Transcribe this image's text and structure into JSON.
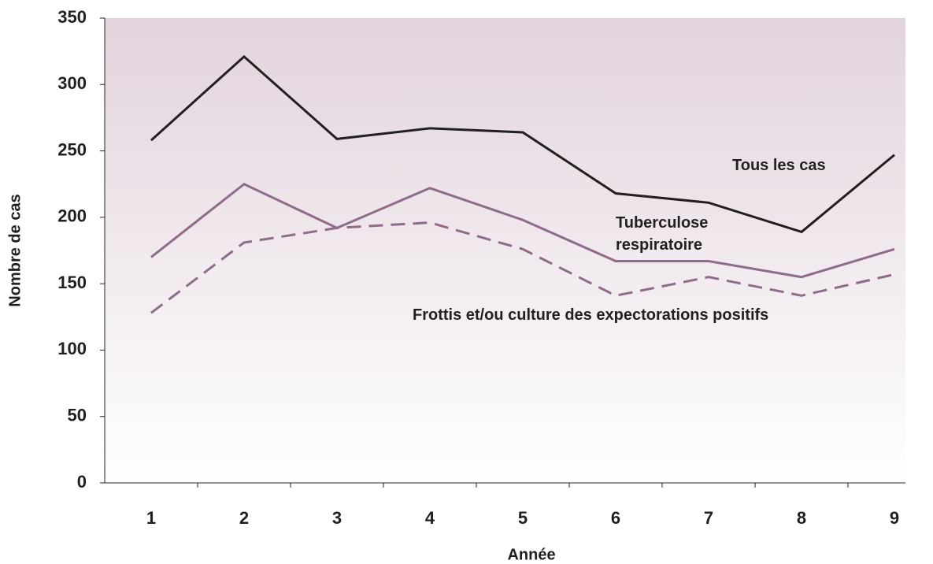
{
  "chart_data": {
    "type": "line",
    "x_label": "Année",
    "y_label": "Nombre de cas",
    "categories": [
      "1",
      "2",
      "3",
      "4",
      "5",
      "6",
      "7",
      "8",
      "9"
    ],
    "series": [
      {
        "name": "Tous les cas",
        "color": "#231f20",
        "values": [
          258,
          321,
          259,
          267,
          264,
          218,
          211,
          189,
          247
        ]
      },
      {
        "name": "Tuberculose respiratoire",
        "color": "#8e6c8a",
        "values": [
          170,
          225,
          192,
          222,
          198,
          167,
          167,
          155,
          176
        ]
      },
      {
        "name": "Frottis et/ou culture des expectorations positifs",
        "color": "#8e6c8a",
        "dashed": true,
        "values": [
          128,
          181,
          192,
          196,
          176,
          141,
          155,
          141,
          157
        ]
      }
    ],
    "ylim": [
      0,
      350
    ],
    "yticks": [
      0,
      50,
      100,
      150,
      200,
      250,
      300,
      350
    ]
  }
}
